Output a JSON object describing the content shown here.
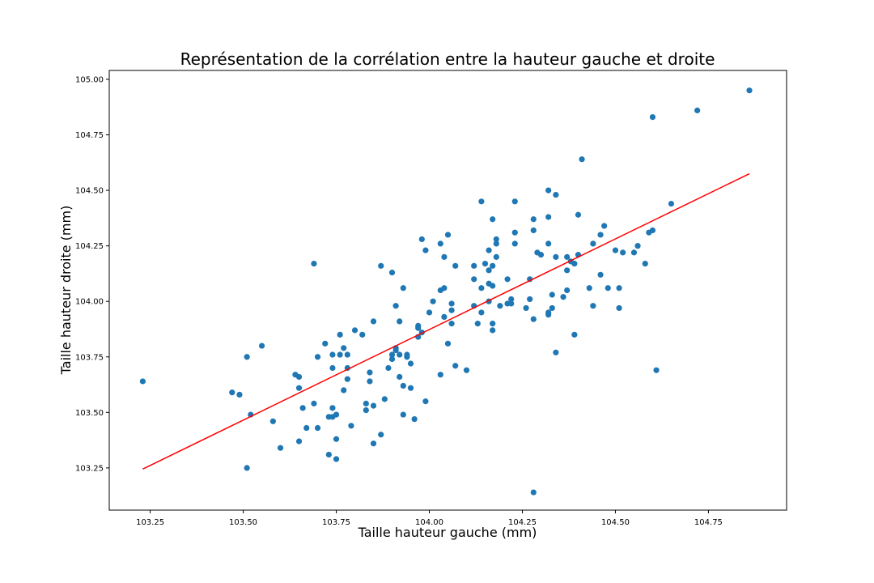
{
  "chart_data": {
    "type": "scatter",
    "title": "Représentation de la corrélation entre la hauteur gauche et droite",
    "xlabel": "Taille hauteur gauche (mm)",
    "ylabel": "Taille hauteur droite (mm)",
    "xlim": [
      103.14,
      104.96
    ],
    "ylim": [
      103.06,
      105.04
    ],
    "xticks": [
      103.25,
      103.5,
      103.75,
      104.0,
      104.25,
      104.5,
      104.75
    ],
    "xtick_labels": [
      "103.25",
      "103.50",
      "103.75",
      "104.00",
      "104.25",
      "104.50",
      "104.75"
    ],
    "yticks": [
      103.25,
      103.5,
      103.75,
      104.0,
      104.25,
      104.5,
      104.75,
      105.0
    ],
    "ytick_labels": [
      "103.25",
      "103.50",
      "103.75",
      "104.00",
      "104.25",
      "104.50",
      "104.75",
      "105.00"
    ],
    "grid": false,
    "colors": {
      "points": "#1f77b4",
      "fit_line": "#ff0000"
    },
    "series": [
      {
        "kind": "points",
        "points": [
          [
            103.23,
            103.64
          ],
          [
            103.47,
            103.59
          ],
          [
            103.49,
            103.58
          ],
          [
            103.51,
            103.75
          ],
          [
            103.51,
            103.25
          ],
          [
            103.52,
            103.49
          ],
          [
            103.55,
            103.8
          ],
          [
            103.58,
            103.46
          ],
          [
            103.6,
            103.34
          ],
          [
            103.64,
            103.67
          ],
          [
            103.65,
            103.66
          ],
          [
            103.65,
            103.61
          ],
          [
            103.65,
            103.37
          ],
          [
            103.66,
            103.52
          ],
          [
            103.67,
            103.43
          ],
          [
            103.69,
            104.17
          ],
          [
            103.69,
            103.54
          ],
          [
            103.7,
            103.75
          ],
          [
            103.7,
            103.43
          ],
          [
            103.72,
            103.81
          ],
          [
            103.73,
            103.48
          ],
          [
            103.73,
            103.31
          ],
          [
            103.74,
            103.76
          ],
          [
            103.74,
            103.7
          ],
          [
            103.74,
            103.52
          ],
          [
            103.74,
            103.48
          ],
          [
            103.75,
            103.49
          ],
          [
            103.75,
            103.38
          ],
          [
            103.75,
            103.29
          ],
          [
            103.76,
            103.85
          ],
          [
            103.76,
            103.76
          ],
          [
            103.77,
            103.79
          ],
          [
            103.77,
            103.6
          ],
          [
            103.78,
            103.76
          ],
          [
            103.78,
            103.7
          ],
          [
            103.78,
            103.65
          ],
          [
            103.79,
            103.44
          ],
          [
            103.8,
            103.87
          ],
          [
            103.82,
            103.85
          ],
          [
            103.83,
            103.54
          ],
          [
            103.83,
            103.51
          ],
          [
            103.84,
            103.68
          ],
          [
            103.84,
            103.64
          ],
          [
            103.85,
            103.91
          ],
          [
            103.85,
            103.53
          ],
          [
            103.85,
            103.36
          ],
          [
            103.87,
            104.16
          ],
          [
            103.87,
            103.4
          ],
          [
            103.88,
            103.56
          ],
          [
            103.89,
            103.7
          ],
          [
            103.9,
            104.13
          ],
          [
            103.9,
            103.76
          ],
          [
            103.9,
            103.74
          ],
          [
            103.91,
            103.98
          ],
          [
            103.91,
            103.79
          ],
          [
            103.91,
            103.78
          ],
          [
            103.92,
            103.91
          ],
          [
            103.92,
            103.76
          ],
          [
            103.92,
            103.66
          ],
          [
            103.93,
            104.06
          ],
          [
            103.93,
            103.62
          ],
          [
            103.93,
            103.49
          ],
          [
            103.94,
            103.76
          ],
          [
            103.94,
            103.75
          ],
          [
            103.95,
            103.72
          ],
          [
            103.95,
            103.61
          ],
          [
            103.96,
            103.47
          ],
          [
            103.97,
            103.89
          ],
          [
            103.97,
            103.88
          ],
          [
            103.97,
            103.84
          ],
          [
            103.98,
            104.28
          ],
          [
            103.98,
            103.86
          ],
          [
            103.99,
            104.23
          ],
          [
            103.99,
            103.55
          ],
          [
            104.0,
            103.95
          ],
          [
            104.01,
            104.0
          ],
          [
            104.03,
            104.26
          ],
          [
            104.03,
            104.05
          ],
          [
            104.03,
            103.67
          ],
          [
            104.04,
            104.2
          ],
          [
            104.04,
            104.06
          ],
          [
            104.04,
            103.93
          ],
          [
            104.05,
            104.3
          ],
          [
            104.05,
            103.81
          ],
          [
            104.06,
            103.99
          ],
          [
            104.06,
            103.96
          ],
          [
            104.06,
            103.9
          ],
          [
            104.07,
            104.16
          ],
          [
            104.07,
            103.71
          ],
          [
            104.1,
            103.69
          ],
          [
            104.12,
            104.16
          ],
          [
            104.12,
            104.1
          ],
          [
            104.12,
            103.98
          ],
          [
            104.13,
            103.9
          ],
          [
            104.14,
            104.45
          ],
          [
            104.14,
            104.06
          ],
          [
            104.14,
            103.95
          ],
          [
            104.15,
            104.17
          ],
          [
            104.16,
            104.23
          ],
          [
            104.16,
            104.14
          ],
          [
            104.16,
            104.08
          ],
          [
            104.16,
            104.0
          ],
          [
            104.17,
            104.37
          ],
          [
            104.17,
            104.16
          ],
          [
            104.17,
            104.07
          ],
          [
            104.17,
            103.9
          ],
          [
            104.17,
            103.87
          ],
          [
            104.18,
            104.28
          ],
          [
            104.18,
            104.26
          ],
          [
            104.18,
            104.2
          ],
          [
            104.19,
            103.98
          ],
          [
            104.21,
            104.1
          ],
          [
            104.21,
            103.99
          ],
          [
            104.22,
            104.01
          ],
          [
            104.22,
            103.99
          ],
          [
            104.23,
            104.45
          ],
          [
            104.23,
            104.31
          ],
          [
            104.23,
            104.26
          ],
          [
            104.26,
            103.97
          ],
          [
            104.27,
            104.1
          ],
          [
            104.27,
            104.01
          ],
          [
            104.28,
            104.37
          ],
          [
            104.28,
            104.32
          ],
          [
            104.28,
            103.92
          ],
          [
            104.28,
            103.14
          ],
          [
            104.29,
            104.22
          ],
          [
            104.3,
            104.21
          ],
          [
            104.32,
            104.5
          ],
          [
            104.32,
            104.38
          ],
          [
            104.32,
            104.26
          ],
          [
            104.32,
            103.95
          ],
          [
            104.32,
            103.94
          ],
          [
            104.33,
            104.03
          ],
          [
            104.33,
            103.97
          ],
          [
            104.34,
            104.48
          ],
          [
            104.34,
            104.2
          ],
          [
            104.34,
            103.77
          ],
          [
            104.36,
            104.02
          ],
          [
            104.37,
            104.2
          ],
          [
            104.37,
            104.14
          ],
          [
            104.37,
            104.05
          ],
          [
            104.38,
            104.18
          ],
          [
            104.39,
            104.17
          ],
          [
            104.39,
            103.85
          ],
          [
            104.4,
            104.39
          ],
          [
            104.4,
            104.21
          ],
          [
            104.41,
            104.64
          ],
          [
            104.43,
            104.06
          ],
          [
            104.44,
            104.26
          ],
          [
            104.44,
            103.98
          ],
          [
            104.46,
            104.3
          ],
          [
            104.46,
            104.12
          ],
          [
            104.47,
            104.34
          ],
          [
            104.48,
            104.06
          ],
          [
            104.5,
            104.23
          ],
          [
            104.51,
            104.06
          ],
          [
            104.51,
            103.97
          ],
          [
            104.52,
            104.22
          ],
          [
            104.55,
            104.22
          ],
          [
            104.56,
            104.25
          ],
          [
            104.58,
            104.17
          ],
          [
            104.59,
            104.31
          ],
          [
            104.6,
            104.83
          ],
          [
            104.6,
            104.32
          ],
          [
            104.61,
            103.69
          ],
          [
            104.65,
            104.44
          ],
          [
            104.72,
            104.86
          ],
          [
            104.86,
            104.95
          ]
        ]
      },
      {
        "kind": "fit_line",
        "points": [
          [
            103.23,
            103.245
          ],
          [
            104.86,
            104.575
          ]
        ]
      }
    ]
  }
}
